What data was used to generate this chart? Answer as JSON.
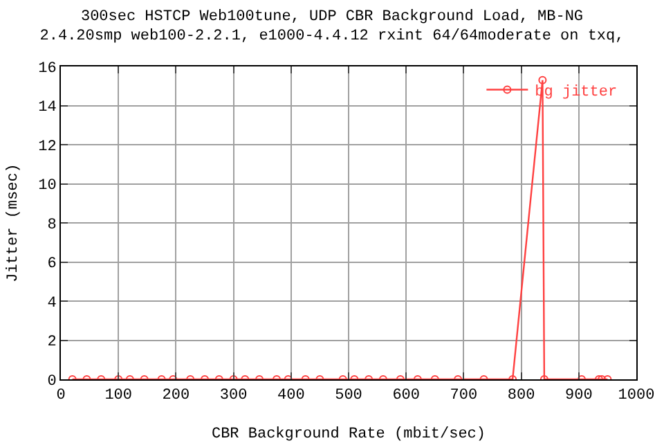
{
  "chart_data": {
    "type": "line",
    "title": "300sec HSTCP Web100tune, UDP CBR Background Load, MB-NG",
    "subtitle": "2.4.20smp web100-2.2.1, e1000-4.4.12 rxint 64/64moderate on txq,",
    "xlabel": "CBR Background Rate (mbit/sec)",
    "ylabel": "Jitter (msec)",
    "x": [
      20,
      45,
      70,
      100,
      120,
      145,
      175,
      195,
      225,
      250,
      275,
      300,
      320,
      345,
      375,
      395,
      425,
      450,
      490,
      510,
      535,
      560,
      590,
      620,
      650,
      690,
      735,
      785,
      837,
      840,
      905,
      935,
      940,
      950
    ],
    "series": [
      {
        "name": "bg jitter",
        "color": "#ff4040",
        "values": [
          0,
          0,
          0,
          0,
          0,
          0,
          0,
          0,
          0,
          0,
          0,
          0,
          0,
          0,
          0,
          0,
          0,
          0,
          0,
          0,
          0,
          0,
          0,
          0,
          0,
          0,
          0,
          0,
          15.3,
          0,
          0,
          0,
          0,
          0
        ]
      }
    ],
    "xlim": [
      0,
      1000
    ],
    "xticks": [
      0,
      100,
      200,
      300,
      400,
      500,
      600,
      700,
      800,
      900,
      1000
    ],
    "ylim": [
      0,
      16
    ],
    "yticks": [
      0,
      2,
      4,
      6,
      8,
      10,
      12,
      14,
      16
    ],
    "grid": true,
    "legend": "top right",
    "marker": "circle",
    "line_style": "solid"
  }
}
